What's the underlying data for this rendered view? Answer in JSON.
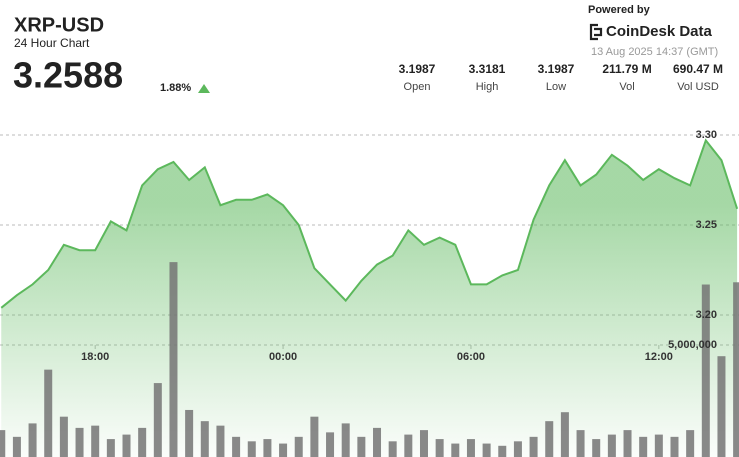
{
  "header": {
    "title": "XRP-USD",
    "subtitle": "24 Hour Chart",
    "price": "3.2588",
    "change": "1.88%",
    "powered_by": "Powered by",
    "brand": "CoinDesk Data",
    "timestamp": "13 Aug 2025 14:37 (GMT)",
    "stats": [
      {
        "value": "3.1987",
        "label": "Open"
      },
      {
        "value": "3.3181",
        "label": "High"
      },
      {
        "value": "3.1987",
        "label": "Low"
      },
      {
        "value": "211.79 M",
        "label": "Vol"
      },
      {
        "value": "690.47 M",
        "label": "Vol USD"
      }
    ]
  },
  "chart_data": [
    {
      "type": "area",
      "color": "#5cb85c",
      "x": [
        15,
        15.5,
        16,
        16.5,
        17,
        17.5,
        18,
        18.5,
        19,
        19.5,
        20,
        20.5,
        21,
        21.5,
        22,
        22.5,
        23,
        23.5,
        24,
        24.5,
        25,
        25.5,
        26,
        26.5,
        27,
        27.5,
        28,
        28.5,
        29,
        29.5,
        30,
        30.5,
        31,
        31.5,
        32,
        32.5,
        33,
        33.5,
        34,
        34.5,
        35,
        35.5,
        36,
        36.5,
        37,
        37.5,
        38,
        38.5
      ],
      "values": [
        3.204,
        3.211,
        3.217,
        3.225,
        3.239,
        3.236,
        3.236,
        3.252,
        3.247,
        3.272,
        3.281,
        3.285,
        3.275,
        3.282,
        3.261,
        3.264,
        3.264,
        3.267,
        3.261,
        3.25,
        3.226,
        3.217,
        3.208,
        3.219,
        3.228,
        3.233,
        3.247,
        3.239,
        3.243,
        3.239,
        3.217,
        3.217,
        3.222,
        3.225,
        3.253,
        3.272,
        3.286,
        3.272,
        3.278,
        3.289,
        3.283,
        3.275,
        3.281,
        3.276,
        3.272,
        3.297,
        3.286,
        3.259
      ],
      "xlim": [
        14.96,
        38.56
      ],
      "ylim": [
        3.12,
        3.375
      ],
      "xticks": [
        {
          "value": 18,
          "label": "18:00"
        },
        {
          "value": 24,
          "label": "00:00"
        },
        {
          "value": 30,
          "label": "06:00"
        },
        {
          "value": 36,
          "label": "12:00"
        }
      ],
      "yticks": [
        {
          "value": 3.2,
          "label": "3.20"
        },
        {
          "value": 3.25,
          "label": "3.25"
        },
        {
          "value": 3.3,
          "label": "3.30"
        }
      ],
      "grid": true
    },
    {
      "type": "bar",
      "color": "#747474",
      "x": [
        15,
        15.5,
        16,
        16.5,
        17,
        17.5,
        18,
        18.5,
        19,
        19.5,
        20,
        20.5,
        21,
        21.5,
        22,
        22.5,
        23,
        23.5,
        24,
        24.5,
        25,
        25.5,
        26,
        26.5,
        27,
        27.5,
        28,
        28.5,
        29,
        29.5,
        30,
        30.5,
        31,
        31.5,
        32,
        32.5,
        33,
        33.5,
        34,
        34.5,
        35,
        35.5,
        36,
        36.5,
        37,
        37.5,
        38,
        38.5
      ],
      "values": [
        1200000,
        900000,
        1500000,
        3900000,
        1800000,
        1300000,
        1400000,
        800000,
        1000000,
        1300000,
        3300000,
        8700000,
        2100000,
        1600000,
        1400000,
        900000,
        700000,
        800000,
        600000,
        900000,
        1800000,
        1100000,
        1500000,
        900000,
        1300000,
        700000,
        1000000,
        1200000,
        800000,
        600000,
        800000,
        600000,
        500000,
        700000,
        900000,
        1600000,
        2000000,
        1200000,
        800000,
        1000000,
        1200000,
        900000,
        1000000,
        900000,
        1200000,
        7700000,
        4500000,
        7800000
      ],
      "xlim": [
        14.96,
        38.56
      ],
      "ylim": [
        0,
        20000000
      ],
      "yticks": [
        {
          "value": 5000000,
          "label": "5,000,000"
        }
      ],
      "grid": true
    }
  ]
}
